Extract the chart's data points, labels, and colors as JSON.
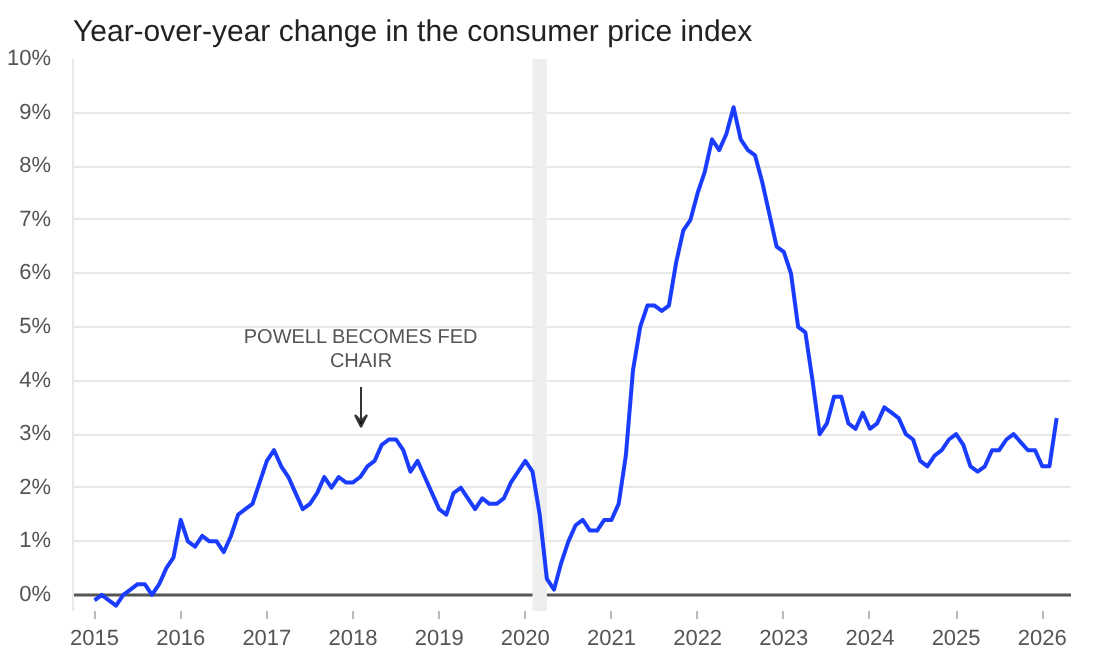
{
  "chart_data": {
    "type": "line",
    "title": "Year-over-year change in the consumer price index",
    "x": [
      "2015-01",
      "2015-02",
      "2015-03",
      "2015-04",
      "2015-05",
      "2015-06",
      "2015-07",
      "2015-08",
      "2015-09",
      "2015-10",
      "2015-11",
      "2015-12",
      "2016-01",
      "2016-02",
      "2016-03",
      "2016-04",
      "2016-05",
      "2016-06",
      "2016-07",
      "2016-08",
      "2016-09",
      "2016-10",
      "2016-11",
      "2016-12",
      "2017-01",
      "2017-02",
      "2017-03",
      "2017-04",
      "2017-05",
      "2017-06",
      "2017-07",
      "2017-08",
      "2017-09",
      "2017-10",
      "2017-11",
      "2017-12",
      "2018-01",
      "2018-02",
      "2018-03",
      "2018-04",
      "2018-05",
      "2018-06",
      "2018-07",
      "2018-08",
      "2018-09",
      "2018-10",
      "2018-11",
      "2018-12",
      "2019-01",
      "2019-02",
      "2019-03",
      "2019-04",
      "2019-05",
      "2019-06",
      "2019-07",
      "2019-08",
      "2019-09",
      "2019-10",
      "2019-11",
      "2019-12",
      "2020-01",
      "2020-02",
      "2020-03",
      "2020-04",
      "2020-05",
      "2020-06",
      "2020-07",
      "2020-08",
      "2020-09",
      "2020-10",
      "2020-11",
      "2020-12",
      "2021-01",
      "2021-02",
      "2021-03",
      "2021-04",
      "2021-05",
      "2021-06",
      "2021-07",
      "2021-08",
      "2021-09",
      "2021-10",
      "2021-11",
      "2021-12",
      "2022-01",
      "2022-02",
      "2022-03",
      "2022-04",
      "2022-05",
      "2022-06",
      "2022-07",
      "2022-08",
      "2022-09",
      "2022-10",
      "2022-11",
      "2022-12",
      "2023-01",
      "2023-02",
      "2023-03",
      "2023-04",
      "2023-05",
      "2023-06",
      "2023-07",
      "2023-08",
      "2023-09",
      "2023-10",
      "2023-11",
      "2023-12",
      "2024-01",
      "2024-02",
      "2024-03",
      "2024-04",
      "2024-05",
      "2024-06",
      "2024-07",
      "2024-08",
      "2024-09",
      "2024-10",
      "2024-11",
      "2024-12",
      "2025-01",
      "2025-02",
      "2025-03",
      "2025-04",
      "2025-05",
      "2025-06",
      "2025-07",
      "2025-08",
      "2025-09",
      "2025-11",
      "2025-12",
      "2026-01",
      "2026-02",
      "2026-03"
    ],
    "series": [
      {
        "color": "#1a3cff",
        "values": [
          -0.1,
          0.0,
          -0.1,
          -0.2,
          0.0,
          0.1,
          0.2,
          0.2,
          0.0,
          0.2,
          0.5,
          0.7,
          1.4,
          1.0,
          0.9,
          1.1,
          1.0,
          1.0,
          0.8,
          1.1,
          1.5,
          1.6,
          1.7,
          2.1,
          2.5,
          2.7,
          2.4,
          2.2,
          1.9,
          1.6,
          1.7,
          1.9,
          2.2,
          2.0,
          2.2,
          2.1,
          2.1,
          2.2,
          2.4,
          2.5,
          2.8,
          2.9,
          2.9,
          2.7,
          2.3,
          2.5,
          2.2,
          1.9,
          1.6,
          1.5,
          1.9,
          2.0,
          1.8,
          1.6,
          1.8,
          1.7,
          1.7,
          1.8,
          2.1,
          2.3,
          2.5,
          2.3,
          1.5,
          0.3,
          0.1,
          0.6,
          1.0,
          1.3,
          1.4,
          1.2,
          1.2,
          1.4,
          1.4,
          1.7,
          2.6,
          4.2,
          5.0,
          5.4,
          5.4,
          5.3,
          5.4,
          6.2,
          6.8,
          7.0,
          7.5,
          7.9,
          8.5,
          8.3,
          8.6,
          9.1,
          8.5,
          8.3,
          8.2,
          7.7,
          7.1,
          6.5,
          6.4,
          6.0,
          5.0,
          4.9,
          4.0,
          3.0,
          3.2,
          3.7,
          3.7,
          3.2,
          3.1,
          3.4,
          3.1,
          3.2,
          3.5,
          3.4,
          3.3,
          3.0,
          2.9,
          2.5,
          2.4,
          2.6,
          2.7,
          2.9,
          3.0,
          2.8,
          2.4,
          2.3,
          2.4,
          2.7,
          2.7,
          2.9,
          3.0,
          2.7,
          2.7,
          2.4,
          2.4,
          3.3
        ]
      }
    ],
    "xlim": [
      "2014-10",
      "2026-05"
    ],
    "xticks": [
      "2015",
      "2016",
      "2017",
      "2018",
      "2019",
      "2020",
      "2021",
      "2022",
      "2023",
      "2024",
      "2025",
      "2026"
    ],
    "ylim": [
      -0.3,
      10
    ],
    "yticks": [
      {
        "value": 0,
        "label": "0%"
      },
      {
        "value": 1,
        "label": "1%"
      },
      {
        "value": 2,
        "label": "2%"
      },
      {
        "value": 3,
        "label": "3%"
      },
      {
        "value": 4,
        "label": "4%"
      },
      {
        "value": 5,
        "label": "5%"
      },
      {
        "value": 6,
        "label": "6%"
      },
      {
        "value": 7,
        "label": "7%"
      },
      {
        "value": 8,
        "label": "8%"
      },
      {
        "value": 9,
        "label": "9%"
      },
      {
        "value": 10,
        "label": "10%"
      }
    ],
    "grid": "y",
    "marker": "none",
    "line_style": "solid",
    "bands": [
      {
        "axis": "x",
        "from": "2020-02",
        "to": "2020-04",
        "color": "#eeeeee"
      }
    ],
    "annotations": [
      "POWELL BECOMES FED\nCHAIR"
    ]
  }
}
